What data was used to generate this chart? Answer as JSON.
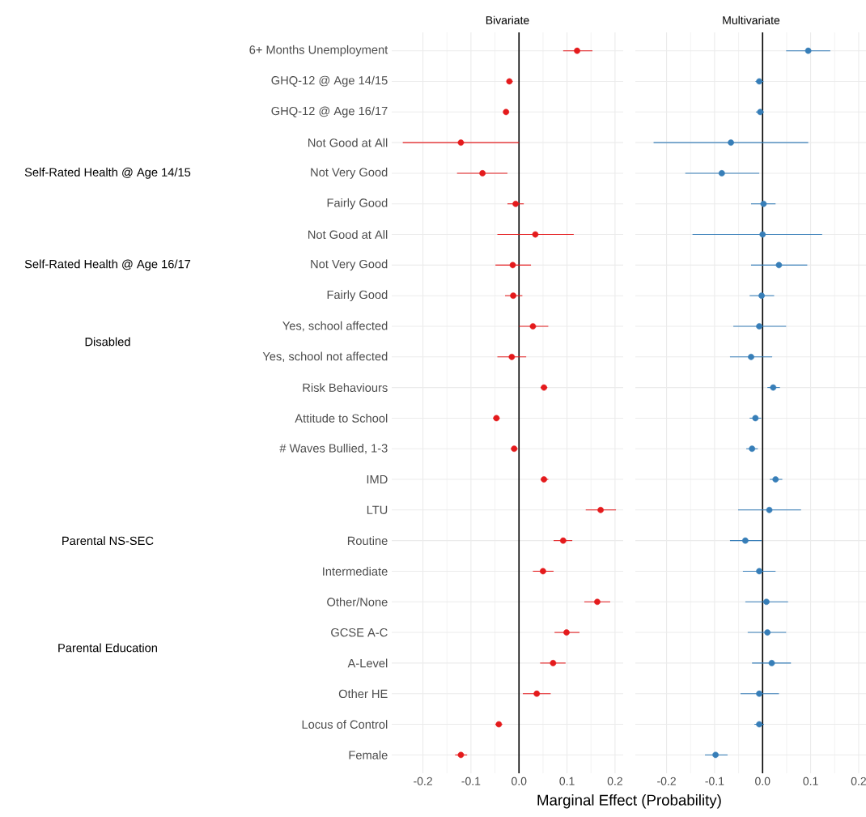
{
  "chart_data": [
    {
      "type": "scatter",
      "orientation": "horizontal",
      "title": "Bivariate",
      "xlabel": "Marginal Effect (Probability)",
      "categories": [
        "6+ Months Unemployment",
        "GHQ-12 @ Age 14/15",
        "GHQ-12 @ Age 16/17",
        "Not Good at All",
        "Not Very Good",
        "Fairly Good",
        "Not Good at All",
        "Not Very Good",
        "Fairly Good",
        "Yes, school affected",
        "Yes, school not affected",
        "Risk Behaviours",
        "Attitude to School",
        "# Waves Bullied, 1-3",
        "IMD",
        "LTU",
        "Routine",
        "Intermediate",
        "Other/None",
        "GCSE A-C",
        "A-Level",
        "Other HE",
        "Locus of Control",
        "Female"
      ],
      "values": [
        0.121,
        -0.02,
        -0.027,
        -0.121,
        -0.076,
        -0.007,
        0.034,
        -0.013,
        -0.012,
        0.029,
        -0.015,
        0.052,
        -0.047,
        -0.01,
        0.052,
        0.17,
        0.092,
        0.05,
        0.163,
        0.099,
        0.071,
        0.037,
        -0.042,
        -0.121
      ],
      "errors": [
        [
          0.092,
          0.153
        ],
        [
          -0.025,
          -0.013
        ],
        [
          -0.031,
          -0.022
        ],
        [
          -0.242,
          0.0
        ],
        [
          -0.129,
          -0.024
        ],
        [
          -0.024,
          0.01
        ],
        [
          -0.045,
          0.114
        ],
        [
          -0.049,
          0.025
        ],
        [
          -0.029,
          0.007
        ],
        [
          0.0,
          0.061
        ],
        [
          -0.045,
          0.015
        ],
        [
          0.045,
          0.059
        ],
        [
          -0.054,
          -0.04
        ],
        [
          -0.017,
          -0.003
        ],
        [
          0.045,
          0.061
        ],
        [
          0.139,
          0.202
        ],
        [
          0.072,
          0.111
        ],
        [
          0.029,
          0.072
        ],
        [
          0.136,
          0.19
        ],
        [
          0.074,
          0.126
        ],
        [
          0.044,
          0.097
        ],
        [
          0.008,
          0.066
        ],
        [
          -0.049,
          -0.035
        ],
        [
          -0.133,
          -0.108
        ]
      ],
      "annotations": [
        "Self-Rated Health @ Age 14/15",
        "Self-Rated Health @ Age 16/17",
        "Disabled",
        "Parental NS-SEC",
        "Parental Education"
      ],
      "color": "#e41a1c",
      "marker": "circle",
      "xlim": [
        -0.265,
        0.217
      ],
      "xticks": [
        -0.2,
        -0.1,
        {
          "value": 0,
          "label": "0.0"
        },
        0.1,
        0.2
      ],
      "grid": true,
      "ref_lines": [
        {
          "axis": "x",
          "value": 0,
          "color": "#000000"
        }
      ]
    },
    {
      "type": "scatter",
      "orientation": "horizontal",
      "title": "Multivariate",
      "categories": [
        null,
        null,
        null,
        null,
        null,
        null,
        null,
        null,
        null,
        null,
        null,
        null,
        null,
        null,
        null,
        null,
        null,
        null,
        null,
        null,
        null,
        null,
        null,
        null
      ],
      "values": [
        0.095,
        -0.007,
        -0.005,
        -0.066,
        -0.085,
        0.002,
        0.0,
        0.034,
        -0.002,
        -0.007,
        -0.024,
        0.022,
        -0.015,
        -0.022,
        0.027,
        0.014,
        -0.036,
        -0.007,
        0.008,
        0.01,
        0.019,
        -0.007,
        -0.007,
        -0.098
      ],
      "errors": [
        [
          0.049,
          0.141
        ],
        [
          -0.015,
          0.002
        ],
        [
          -0.014,
          0.003
        ],
        [
          -0.227,
          0.095
        ],
        [
          -0.161,
          -0.007
        ],
        [
          -0.024,
          0.027
        ],
        [
          -0.146,
          0.124
        ],
        [
          -0.024,
          0.093
        ],
        [
          -0.027,
          0.024
        ],
        [
          -0.061,
          0.049
        ],
        [
          -0.068,
          0.02
        ],
        [
          0.01,
          0.036
        ],
        [
          -0.027,
          -0.003
        ],
        [
          -0.034,
          -0.01
        ],
        [
          0.015,
          0.041
        ],
        [
          -0.051,
          0.08
        ],
        [
          -0.068,
          -0.002
        ],
        [
          -0.041,
          0.027
        ],
        [
          -0.036,
          0.053
        ],
        [
          -0.031,
          0.049
        ],
        [
          -0.022,
          0.059
        ],
        [
          -0.046,
          0.034
        ],
        [
          -0.017,
          0.003
        ],
        [
          -0.12,
          -0.073
        ]
      ],
      "color": "#377eb8",
      "marker": "circle",
      "xlim": [
        -0.265,
        0.217
      ],
      "xticks": [
        -0.2,
        -0.1,
        {
          "value": 0,
          "label": "0.0"
        },
        0.1,
        0.2
      ],
      "grid": true,
      "ref_lines": [
        {
          "axis": "x",
          "value": 0,
          "color": "#000000"
        }
      ],
      "tick_labels": "x"
    }
  ]
}
